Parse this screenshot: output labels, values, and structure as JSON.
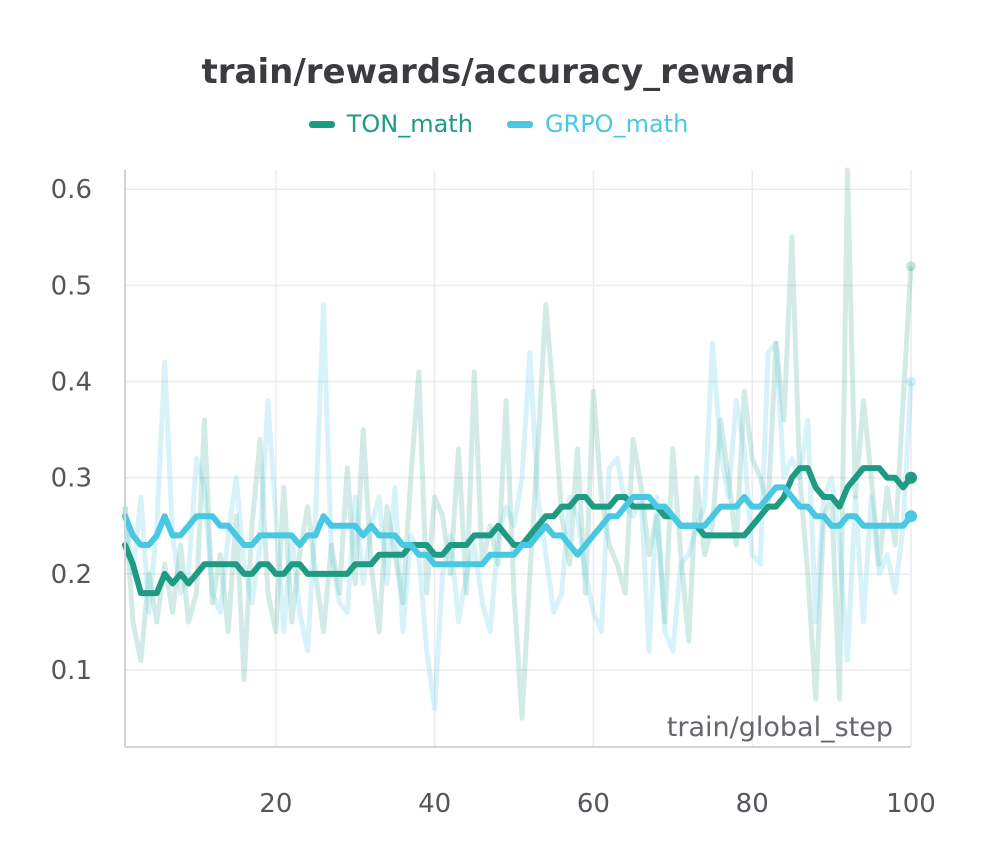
{
  "chart_data": {
    "type": "line",
    "title": "train/rewards/accuracy_reward",
    "xlabel": "train/global_step",
    "ylabel": "",
    "xlim": [
      1,
      100
    ],
    "ylim": [
      0.02,
      0.62
    ],
    "xticks": [
      20,
      40,
      60,
      80,
      100
    ],
    "yticks": [
      0.1,
      0.2,
      0.3,
      0.4,
      0.5,
      0.6
    ],
    "xtick_labels": [
      "20",
      "40",
      "60",
      "80",
      "100"
    ],
    "ytick_labels": [
      "0.1",
      "0.2",
      "0.3",
      "0.4",
      "0.5",
      "0.6"
    ],
    "grid": true,
    "legend_position": "top-center",
    "series": [
      {
        "name": "TON_math",
        "color": "#1f9a83",
        "x": [
          1,
          2,
          3,
          4,
          5,
          6,
          7,
          8,
          9,
          10,
          11,
          12,
          13,
          14,
          15,
          16,
          17,
          18,
          19,
          20,
          21,
          22,
          23,
          24,
          25,
          26,
          27,
          28,
          29,
          30,
          31,
          32,
          33,
          34,
          35,
          36,
          37,
          38,
          39,
          40,
          41,
          42,
          43,
          44,
          45,
          46,
          47,
          48,
          49,
          50,
          51,
          52,
          53,
          54,
          55,
          56,
          57,
          58,
          59,
          60,
          61,
          62,
          63,
          64,
          65,
          66,
          67,
          68,
          69,
          70,
          71,
          72,
          73,
          74,
          75,
          76,
          77,
          78,
          79,
          80,
          81,
          82,
          83,
          84,
          85,
          86,
          87,
          88,
          89,
          90,
          91,
          92,
          93,
          94,
          95,
          96,
          97,
          98,
          99,
          100
        ],
        "values": [
          0.23,
          0.21,
          0.18,
          0.18,
          0.18,
          0.2,
          0.19,
          0.2,
          0.19,
          0.2,
          0.21,
          0.21,
          0.21,
          0.21,
          0.21,
          0.2,
          0.2,
          0.21,
          0.21,
          0.2,
          0.2,
          0.21,
          0.21,
          0.2,
          0.2,
          0.2,
          0.2,
          0.2,
          0.2,
          0.21,
          0.21,
          0.21,
          0.22,
          0.22,
          0.22,
          0.22,
          0.23,
          0.23,
          0.23,
          0.22,
          0.22,
          0.23,
          0.23,
          0.23,
          0.24,
          0.24,
          0.24,
          0.25,
          0.24,
          0.23,
          0.23,
          0.24,
          0.25,
          0.26,
          0.26,
          0.27,
          0.27,
          0.28,
          0.28,
          0.27,
          0.27,
          0.27,
          0.28,
          0.28,
          0.27,
          0.27,
          0.27,
          0.27,
          0.26,
          0.26,
          0.25,
          0.25,
          0.25,
          0.24,
          0.24,
          0.24,
          0.24,
          0.24,
          0.24,
          0.25,
          0.26,
          0.27,
          0.27,
          0.28,
          0.3,
          0.31,
          0.31,
          0.29,
          0.28,
          0.28,
          0.27,
          0.29,
          0.3,
          0.31,
          0.31,
          0.31,
          0.3,
          0.3,
          0.29,
          0.3
        ],
        "raw_values": [
          0.27,
          0.15,
          0.11,
          0.2,
          0.15,
          0.21,
          0.16,
          0.23,
          0.15,
          0.18,
          0.36,
          0.17,
          0.22,
          0.14,
          0.26,
          0.09,
          0.25,
          0.34,
          0.18,
          0.14,
          0.29,
          0.15,
          0.22,
          0.27,
          0.2,
          0.14,
          0.23,
          0.18,
          0.31,
          0.19,
          0.35,
          0.21,
          0.14,
          0.27,
          0.22,
          0.17,
          0.3,
          0.41,
          0.18,
          0.28,
          0.26,
          0.2,
          0.33,
          0.18,
          0.41,
          0.21,
          0.25,
          0.21,
          0.38,
          0.18,
          0.05,
          0.2,
          0.33,
          0.48,
          0.38,
          0.26,
          0.21,
          0.33,
          0.18,
          0.39,
          0.28,
          0.23,
          0.21,
          0.18,
          0.34,
          0.29,
          0.22,
          0.26,
          0.15,
          0.33,
          0.22,
          0.13,
          0.3,
          0.22,
          0.25,
          0.36,
          0.3,
          0.23,
          0.39,
          0.32,
          0.3,
          0.27,
          0.44,
          0.36,
          0.55,
          0.3,
          0.2,
          0.07,
          0.26,
          0.28,
          0.07,
          0.62,
          0.28,
          0.38,
          0.3,
          0.21,
          0.29,
          0.23,
          0.38,
          0.52
        ]
      },
      {
        "name": "GRPO_math",
        "color": "#48c8e2",
        "x": [
          1,
          2,
          3,
          4,
          5,
          6,
          7,
          8,
          9,
          10,
          11,
          12,
          13,
          14,
          15,
          16,
          17,
          18,
          19,
          20,
          21,
          22,
          23,
          24,
          25,
          26,
          27,
          28,
          29,
          30,
          31,
          32,
          33,
          34,
          35,
          36,
          37,
          38,
          39,
          40,
          41,
          42,
          43,
          44,
          45,
          46,
          47,
          48,
          49,
          50,
          51,
          52,
          53,
          54,
          55,
          56,
          57,
          58,
          59,
          60,
          61,
          62,
          63,
          64,
          65,
          66,
          67,
          68,
          69,
          70,
          71,
          72,
          73,
          74,
          75,
          76,
          77,
          78,
          79,
          80,
          81,
          82,
          83,
          84,
          85,
          86,
          87,
          88,
          89,
          90,
          91,
          92,
          93,
          94,
          95,
          96,
          97,
          98,
          99,
          100
        ],
        "values": [
          0.26,
          0.24,
          0.23,
          0.23,
          0.24,
          0.26,
          0.24,
          0.24,
          0.25,
          0.26,
          0.26,
          0.26,
          0.25,
          0.25,
          0.24,
          0.23,
          0.23,
          0.24,
          0.24,
          0.24,
          0.24,
          0.24,
          0.23,
          0.24,
          0.24,
          0.26,
          0.25,
          0.25,
          0.25,
          0.25,
          0.24,
          0.25,
          0.24,
          0.24,
          0.24,
          0.23,
          0.23,
          0.22,
          0.22,
          0.21,
          0.21,
          0.21,
          0.21,
          0.21,
          0.21,
          0.21,
          0.22,
          0.22,
          0.22,
          0.22,
          0.23,
          0.23,
          0.24,
          0.25,
          0.24,
          0.24,
          0.23,
          0.22,
          0.23,
          0.24,
          0.25,
          0.26,
          0.26,
          0.27,
          0.28,
          0.28,
          0.28,
          0.27,
          0.27,
          0.26,
          0.25,
          0.25,
          0.25,
          0.25,
          0.26,
          0.27,
          0.27,
          0.27,
          0.28,
          0.27,
          0.27,
          0.28,
          0.29,
          0.29,
          0.28,
          0.27,
          0.27,
          0.26,
          0.26,
          0.25,
          0.25,
          0.26,
          0.26,
          0.25,
          0.25,
          0.25,
          0.25,
          0.25,
          0.25,
          0.26
        ],
        "raw_values": [
          0.27,
          0.2,
          0.28,
          0.16,
          0.25,
          0.42,
          0.24,
          0.18,
          0.2,
          0.32,
          0.29,
          0.18,
          0.16,
          0.24,
          0.3,
          0.21,
          0.17,
          0.23,
          0.38,
          0.26,
          0.14,
          0.24,
          0.16,
          0.12,
          0.26,
          0.48,
          0.22,
          0.17,
          0.16,
          0.28,
          0.19,
          0.25,
          0.28,
          0.19,
          0.29,
          0.14,
          0.24,
          0.22,
          0.12,
          0.06,
          0.2,
          0.24,
          0.15,
          0.2,
          0.23,
          0.17,
          0.14,
          0.24,
          0.27,
          0.25,
          0.3,
          0.43,
          0.28,
          0.22,
          0.16,
          0.18,
          0.28,
          0.26,
          0.2,
          0.16,
          0.14,
          0.31,
          0.32,
          0.27,
          0.26,
          0.28,
          0.12,
          0.28,
          0.14,
          0.12,
          0.21,
          0.22,
          0.25,
          0.27,
          0.44,
          0.33,
          0.28,
          0.38,
          0.33,
          0.22,
          0.21,
          0.43,
          0.44,
          0.3,
          0.32,
          0.3,
          0.36,
          0.15,
          0.28,
          0.3,
          0.23,
          0.11,
          0.28,
          0.15,
          0.28,
          0.2,
          0.22,
          0.18,
          0.25,
          0.4
        ]
      }
    ]
  }
}
